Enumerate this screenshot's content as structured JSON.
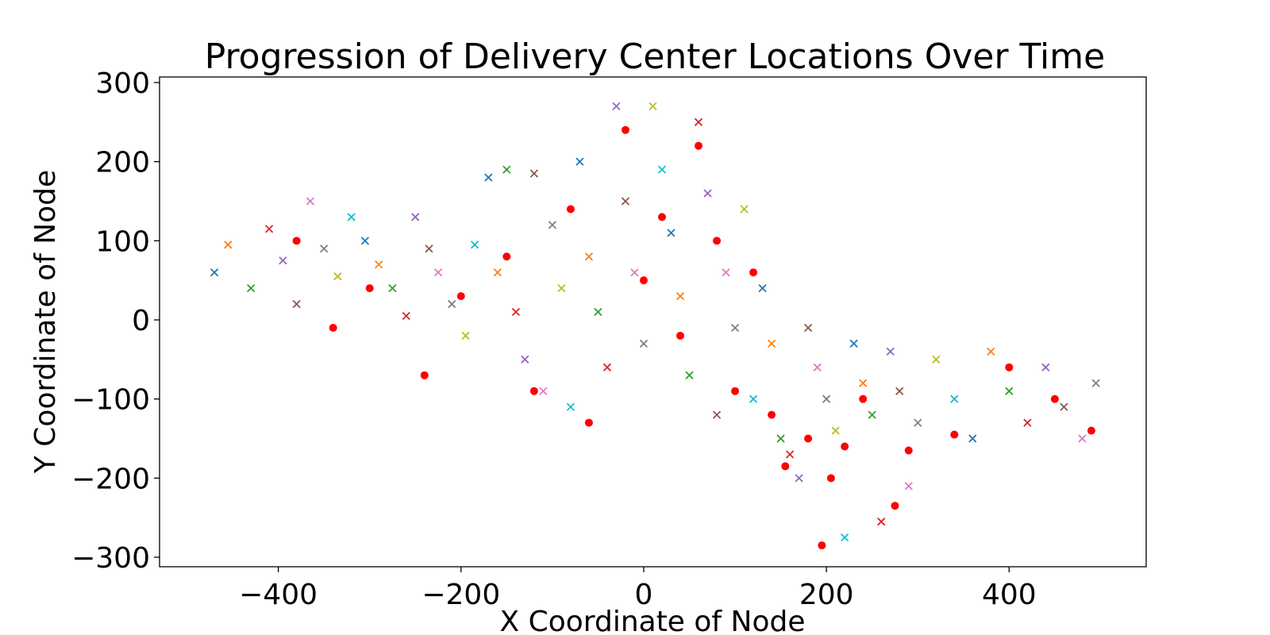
{
  "chart_data": {
    "type": "scatter",
    "title": "Progression of Delivery Center Locations Over Time",
    "xlabel": "X Coordinate of Node",
    "ylabel": "Y Coordinate of Node",
    "xlim": [
      -530,
      550
    ],
    "ylim": [
      -312,
      307
    ],
    "xticks": [
      -400,
      -200,
      0,
      200,
      400
    ],
    "yticks": [
      -300,
      -200,
      -100,
      0,
      100,
      200,
      300
    ],
    "xtick_labels": [
      "−400",
      "−200",
      "0",
      "200",
      "400"
    ],
    "ytick_labels": [
      "−300",
      "−200",
      "−100",
      "0",
      "100",
      "200",
      "300"
    ],
    "grid": false,
    "marker_palette": [
      "#1f77b4",
      "#ff7f0e",
      "#2ca02c",
      "#d62728",
      "#9467bd",
      "#8c564b",
      "#e377c2",
      "#7f7f7f",
      "#bcbd22",
      "#17becf"
    ],
    "center_color": "#ff0000",
    "series": [
      {
        "marker": "x",
        "values_xy": [
          [
            -470,
            60
          ],
          [
            -455,
            95
          ],
          [
            -430,
            40
          ],
          [
            -410,
            115
          ],
          [
            -395,
            75
          ],
          [
            -380,
            20
          ],
          [
            -365,
            150
          ],
          [
            -350,
            90
          ],
          [
            -335,
            55
          ],
          [
            -320,
            130
          ],
          [
            -305,
            100
          ],
          [
            -290,
            70
          ],
          [
            -275,
            40
          ],
          [
            -260,
            5
          ],
          [
            -250,
            130
          ],
          [
            -235,
            90
          ],
          [
            -225,
            60
          ],
          [
            -210,
            20
          ],
          [
            -195,
            -20
          ],
          [
            -185,
            95
          ],
          [
            -170,
            180
          ],
          [
            -160,
            60
          ],
          [
            -150,
            190
          ],
          [
            -140,
            10
          ],
          [
            -130,
            -50
          ],
          [
            -120,
            185
          ],
          [
            -110,
            -90
          ],
          [
            -100,
            120
          ],
          [
            -90,
            40
          ],
          [
            -80,
            -110
          ],
          [
            -70,
            200
          ],
          [
            -60,
            80
          ],
          [
            -50,
            10
          ],
          [
            -40,
            -60
          ],
          [
            -30,
            270
          ],
          [
            -20,
            150
          ],
          [
            -10,
            60
          ],
          [
            0,
            -30
          ],
          [
            10,
            270
          ],
          [
            20,
            190
          ],
          [
            30,
            110
          ],
          [
            40,
            30
          ],
          [
            50,
            -70
          ],
          [
            60,
            250
          ],
          [
            70,
            160
          ],
          [
            80,
            -120
          ],
          [
            90,
            60
          ],
          [
            100,
            -10
          ],
          [
            110,
            140
          ],
          [
            120,
            -100
          ],
          [
            130,
            40
          ],
          [
            140,
            -30
          ],
          [
            150,
            -150
          ],
          [
            160,
            -170
          ],
          [
            170,
            -200
          ],
          [
            180,
            -10
          ],
          [
            190,
            -60
          ],
          [
            200,
            -100
          ],
          [
            210,
            -140
          ],
          [
            220,
            -275
          ],
          [
            230,
            -30
          ],
          [
            240,
            -80
          ],
          [
            250,
            -120
          ],
          [
            260,
            -255
          ],
          [
            270,
            -40
          ],
          [
            280,
            -90
          ],
          [
            290,
            -210
          ],
          [
            300,
            -130
          ],
          [
            320,
            -50
          ],
          [
            340,
            -100
          ],
          [
            360,
            -150
          ],
          [
            380,
            -40
          ],
          [
            400,
            -90
          ],
          [
            420,
            -130
          ],
          [
            440,
            -60
          ],
          [
            460,
            -110
          ],
          [
            480,
            -150
          ],
          [
            495,
            -80
          ]
        ]
      },
      {
        "marker": "o",
        "values_xy": [
          [
            -380,
            100
          ],
          [
            -340,
            -10
          ],
          [
            -300,
            40
          ],
          [
            -240,
            -70
          ],
          [
            -200,
            30
          ],
          [
            -150,
            80
          ],
          [
            -120,
            -90
          ],
          [
            -80,
            140
          ],
          [
            -60,
            -130
          ],
          [
            -20,
            240
          ],
          [
            0,
            50
          ],
          [
            20,
            130
          ],
          [
            40,
            -20
          ],
          [
            60,
            220
          ],
          [
            80,
            100
          ],
          [
            100,
            -90
          ],
          [
            120,
            60
          ],
          [
            140,
            -120
          ],
          [
            155,
            -185
          ],
          [
            180,
            -150
          ],
          [
            195,
            -285
          ],
          [
            205,
            -200
          ],
          [
            220,
            -160
          ],
          [
            240,
            -100
          ],
          [
            275,
            -235
          ],
          [
            290,
            -165
          ],
          [
            340,
            -145
          ],
          [
            400,
            -60
          ],
          [
            450,
            -100
          ],
          [
            490,
            -140
          ]
        ]
      }
    ]
  }
}
